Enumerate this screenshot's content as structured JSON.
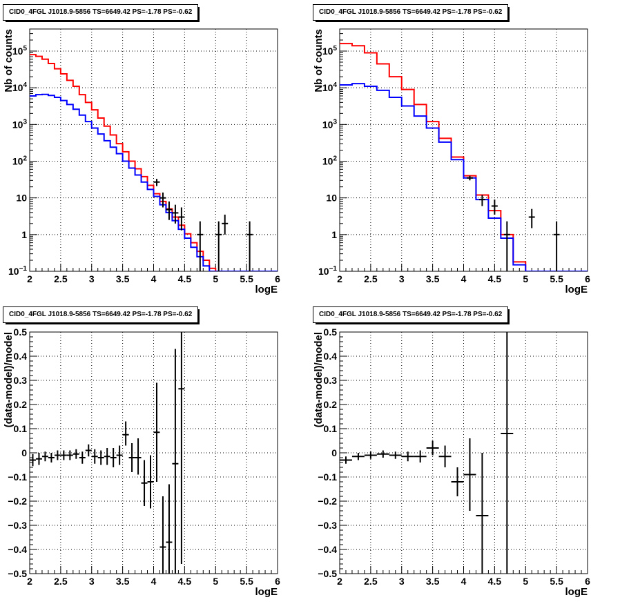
{
  "chart_data": [
    {
      "id": "p1",
      "type": "line",
      "title": "CID0_4FGL J1018.9-5856 TS=6649.42 PS=-1.78 PS=-0.62",
      "xlabel": "logE",
      "ylabel": "Nb of counts",
      "xlim": [
        2,
        6
      ],
      "ylim": [
        0.1,
        400000
      ],
      "yscale": "log",
      "grid": true,
      "xticks": [
        "2",
        "2.5",
        "3",
        "3.5",
        "4",
        "4.5",
        "5",
        "5.5",
        "6"
      ],
      "yticks": [
        {
          "v": 0.1,
          "base": "10",
          "exp": "−1"
        },
        {
          "v": 1,
          "base": "1",
          "exp": ""
        },
        {
          "v": 10,
          "base": "10",
          "exp": ""
        },
        {
          "v": 100,
          "base": "10",
          "exp": "2"
        },
        {
          "v": 1000,
          "base": "10",
          "exp": "3"
        },
        {
          "v": 10000,
          "base": "10",
          "exp": "4"
        },
        {
          "v": 100000,
          "base": "10",
          "exp": "5"
        }
      ],
      "series": [
        {
          "color": "#ff0000",
          "step": true,
          "bin_edges": [
            2.0,
            2.1,
            2.2,
            2.3,
            2.4,
            2.5,
            2.6,
            2.7,
            2.8,
            2.9,
            3.0,
            3.1,
            3.2,
            3.3,
            3.4,
            3.5,
            3.6,
            3.7,
            3.8,
            3.9,
            4.0,
            4.1,
            4.2,
            4.3,
            4.4,
            4.5,
            4.6,
            4.7,
            4.8,
            4.9,
            5.0,
            5.1,
            5.2,
            5.3,
            5.4,
            5.5,
            5.6,
            5.7,
            5.8,
            5.9,
            6.0
          ],
          "values": [
            80000,
            72000,
            60000,
            46000,
            33000,
            24000,
            16000,
            11000,
            6500,
            4000,
            2500,
            1500,
            900,
            520,
            300,
            180,
            100,
            62,
            38,
            22,
            13,
            8,
            5,
            3,
            1.8,
            1.05,
            0.6,
            0.35,
            0.2,
            0.12,
            0.1,
            0.1,
            0.1,
            0.1,
            0.1,
            0.1,
            0.1,
            0.1,
            0.1,
            0.1
          ]
        },
        {
          "color": "#0000ff",
          "step": true,
          "bin_edges": [
            2.0,
            2.1,
            2.2,
            2.3,
            2.4,
            2.5,
            2.6,
            2.7,
            2.8,
            2.9,
            3.0,
            3.1,
            3.2,
            3.3,
            3.4,
            3.5,
            3.6,
            3.7,
            3.8,
            3.9,
            4.0,
            4.1,
            4.2,
            4.3,
            4.4,
            4.5,
            4.6,
            4.7,
            4.8,
            4.9,
            5.0,
            5.1,
            5.2,
            5.3,
            5.4,
            5.5,
            5.6,
            5.7,
            5.8,
            5.9,
            6.0
          ],
          "values": [
            6000,
            6500,
            6600,
            6200,
            5500,
            4500,
            3500,
            2600,
            1800,
            1200,
            800,
            550,
            360,
            240,
            160,
            100,
            65,
            42,
            27,
            17,
            11,
            6.5,
            4,
            2.4,
            1.4,
            0.8,
            0.45,
            0.25,
            0.14,
            0.1,
            0.1,
            0.1,
            0.1,
            0.1,
            0.1,
            0.1,
            0.1,
            0.1,
            0.1,
            0.1
          ]
        },
        {
          "color": "#000000",
          "points": [
            {
              "x": 4.05,
              "y": 27,
              "lo": 21,
              "hi": 33
            },
            {
              "x": 4.15,
              "y": 10,
              "lo": 5.5,
              "hi": 14
            },
            {
              "x": 4.25,
              "y": 4.8,
              "lo": 2.5,
              "hi": 8
            },
            {
              "x": 4.35,
              "y": 3.9,
              "lo": 2,
              "hi": 6.5
            },
            {
              "x": 4.45,
              "y": 3,
              "lo": 1.3,
              "hi": 5.5
            },
            {
              "x": 4.75,
              "y": 1,
              "lo": 0.1,
              "hi": 2.3
            },
            {
              "x": 5.05,
              "y": 1,
              "lo": 0.1,
              "hi": 2.3
            },
            {
              "x": 5.15,
              "y": 2,
              "lo": 1,
              "hi": 3.5
            },
            {
              "x": 5.55,
              "y": 1,
              "lo": 0.1,
              "hi": 2.3
            }
          ]
        }
      ]
    },
    {
      "id": "p2",
      "type": "line",
      "title": "CID0_4FGL J1018.9-5856 TS=6649.42 PS=-1.78 PS=-0.62",
      "xlabel": "logE",
      "ylabel": "Nb of counts",
      "xlim": [
        2,
        6
      ],
      "ylim": [
        0.1,
        400000
      ],
      "yscale": "log",
      "grid": true,
      "xticks": [
        "2",
        "2.5",
        "3",
        "3.5",
        "4",
        "4.5",
        "5",
        "5.5",
        "6"
      ],
      "yticks": [
        {
          "v": 0.1,
          "base": "10",
          "exp": "−1"
        },
        {
          "v": 1,
          "base": "1",
          "exp": ""
        },
        {
          "v": 10,
          "base": "10",
          "exp": ""
        },
        {
          "v": 100,
          "base": "10",
          "exp": "2"
        },
        {
          "v": 1000,
          "base": "10",
          "exp": "3"
        },
        {
          "v": 10000,
          "base": "10",
          "exp": "4"
        },
        {
          "v": 100000,
          "base": "10",
          "exp": "5"
        }
      ],
      "series": [
        {
          "color": "#ff0000",
          "step": true,
          "bin_edges": [
            2.0,
            2.2,
            2.4,
            2.6,
            2.8,
            3.0,
            3.2,
            3.4,
            3.6,
            3.8,
            4.0,
            4.2,
            4.4,
            4.6,
            4.8,
            5.0,
            5.2,
            5.4,
            5.6,
            5.8,
            6.0
          ],
          "values": [
            160000,
            140000,
            90000,
            45000,
            20000,
            9000,
            3500,
            1200,
            420,
            130,
            40,
            12,
            4.5,
            1.0,
            0.18,
            0.1,
            0.1,
            0.1,
            0.1,
            0.1
          ]
        },
        {
          "color": "#0000ff",
          "step": true,
          "bin_edges": [
            2.0,
            2.2,
            2.4,
            2.6,
            2.8,
            3.0,
            3.2,
            3.4,
            3.6,
            3.8,
            4.0,
            4.2,
            4.4,
            4.6,
            4.8,
            5.0,
            5.2,
            5.4,
            5.6,
            5.8,
            6.0
          ],
          "values": [
            12000,
            13000,
            11000,
            8500,
            5500,
            3200,
            1700,
            800,
            330,
            110,
            35,
            9,
            2.8,
            0.8,
            0.15,
            0.1,
            0.1,
            0.1,
            0.1,
            0.1
          ]
        },
        {
          "color": "#000000",
          "points": [
            {
              "x": 4.1,
              "y": 35,
              "lo": 30,
              "hi": 40
            },
            {
              "x": 4.3,
              "y": 9,
              "lo": 6,
              "hi": 12
            },
            {
              "x": 4.5,
              "y": 6,
              "lo": 3.5,
              "hi": 9
            },
            {
              "x": 4.7,
              "y": 1,
              "lo": 0.1,
              "hi": 2.3
            },
            {
              "x": 5.1,
              "y": 3,
              "lo": 1.5,
              "hi": 5
            },
            {
              "x": 5.5,
              "y": 1,
              "lo": 0.1,
              "hi": 2.3
            }
          ]
        }
      ]
    },
    {
      "id": "p3",
      "type": "scatter",
      "title": "CID0_4FGL J1018.9-5856 TS=6649.42 PS=-1.78 PS=-0.62",
      "xlabel": "logE",
      "ylabel": "(data-model)/model",
      "xlim": [
        2,
        6
      ],
      "ylim": [
        -0.5,
        0.5
      ],
      "yscale": "linear",
      "grid": true,
      "xticks": [
        "2",
        "2.5",
        "3",
        "3.5",
        "4",
        "4.5",
        "5",
        "5.5",
        "6"
      ],
      "yticks": [
        {
          "v": -0.5,
          "base": "−0.5",
          "exp": ""
        },
        {
          "v": -0.4,
          "base": "−0.4",
          "exp": ""
        },
        {
          "v": -0.3,
          "base": "−0.3",
          "exp": ""
        },
        {
          "v": -0.2,
          "base": "−0.2",
          "exp": ""
        },
        {
          "v": -0.1,
          "base": "−0.1",
          "exp": ""
        },
        {
          "v": 0,
          "base": "0",
          "exp": ""
        },
        {
          "v": 0.1,
          "base": "0.1",
          "exp": ""
        },
        {
          "v": 0.2,
          "base": "0.2",
          "exp": ""
        },
        {
          "v": 0.3,
          "base": "0.3",
          "exp": ""
        },
        {
          "v": 0.4,
          "base": "0.4",
          "exp": ""
        },
        {
          "v": 0.5,
          "base": "0.5",
          "exp": ""
        }
      ],
      "series": [
        {
          "color": "#000000",
          "xerr": 0.05,
          "points": [
            {
              "x": 2.05,
              "y": -0.03,
              "lo": -0.055,
              "hi": -0.005
            },
            {
              "x": 2.15,
              "y": -0.025,
              "lo": -0.05,
              "hi": 0.0
            },
            {
              "x": 2.25,
              "y": -0.015,
              "lo": -0.035,
              "hi": 0.005
            },
            {
              "x": 2.35,
              "y": -0.02,
              "lo": -0.04,
              "hi": 0.0
            },
            {
              "x": 2.45,
              "y": -0.01,
              "lo": -0.03,
              "hi": 0.01
            },
            {
              "x": 2.55,
              "y": -0.01,
              "lo": -0.03,
              "hi": 0.01
            },
            {
              "x": 2.65,
              "y": -0.01,
              "lo": -0.03,
              "hi": 0.01
            },
            {
              "x": 2.75,
              "y": -0.005,
              "lo": -0.025,
              "hi": 0.015
            },
            {
              "x": 2.85,
              "y": -0.02,
              "lo": -0.045,
              "hi": 0.005
            },
            {
              "x": 2.95,
              "y": 0.01,
              "lo": -0.015,
              "hi": 0.035
            },
            {
              "x": 3.05,
              "y": -0.015,
              "lo": -0.045,
              "hi": 0.015
            },
            {
              "x": 3.15,
              "y": -0.02,
              "lo": -0.05,
              "hi": 0.01
            },
            {
              "x": 3.25,
              "y": -0.015,
              "lo": -0.05,
              "hi": 0.02
            },
            {
              "x": 3.35,
              "y": -0.02,
              "lo": -0.06,
              "hi": 0.02
            },
            {
              "x": 3.45,
              "y": -0.01,
              "lo": -0.05,
              "hi": 0.03
            },
            {
              "x": 3.55,
              "y": 0.075,
              "lo": 0.03,
              "hi": 0.13
            },
            {
              "x": 3.65,
              "y": -0.02,
              "lo": -0.08,
              "hi": 0.04
            },
            {
              "x": 3.75,
              "y": -0.02,
              "lo": -0.09,
              "hi": 0.06
            },
            {
              "x": 3.85,
              "y": -0.125,
              "lo": -0.22,
              "hi": -0.03
            },
            {
              "x": 3.95,
              "y": -0.12,
              "lo": -0.23,
              "hi": -0.01
            },
            {
              "x": 4.05,
              "y": 0.085,
              "lo": -0.12,
              "hi": 0.29
            },
            {
              "x": 4.15,
              "y": -0.39,
              "lo": -0.6,
              "hi": -0.18
            },
            {
              "x": 4.25,
              "y": -0.37,
              "lo": -0.6,
              "hi": -0.13
            },
            {
              "x": 4.35,
              "y": -0.045,
              "lo": -0.55,
              "hi": 0.43
            },
            {
              "x": 4.45,
              "y": 0.265,
              "lo": -0.46,
              "hi": 0.6
            }
          ]
        }
      ]
    },
    {
      "id": "p4",
      "type": "scatter",
      "title": "CID0_4FGL J1018.9-5856 TS=6649.42 PS=-1.78 PS=-0.62",
      "xlabel": "logE",
      "ylabel": "(data-model)/model",
      "xlim": [
        2,
        6
      ],
      "ylim": [
        -0.5,
        0.5
      ],
      "yscale": "linear",
      "grid": true,
      "xticks": [
        "2",
        "2.5",
        "3",
        "3.5",
        "4",
        "4.5",
        "5",
        "5.5",
        "6"
      ],
      "yticks": [
        {
          "v": -0.5,
          "base": "−0.5",
          "exp": ""
        },
        {
          "v": -0.4,
          "base": "−0.4",
          "exp": ""
        },
        {
          "v": -0.3,
          "base": "−0.3",
          "exp": ""
        },
        {
          "v": -0.2,
          "base": "−0.2",
          "exp": ""
        },
        {
          "v": -0.1,
          "base": "−0.1",
          "exp": ""
        },
        {
          "v": 0,
          "base": "0",
          "exp": ""
        },
        {
          "v": 0.1,
          "base": "0.1",
          "exp": ""
        },
        {
          "v": 0.2,
          "base": "0.2",
          "exp": ""
        },
        {
          "v": 0.3,
          "base": "0.3",
          "exp": ""
        },
        {
          "v": 0.4,
          "base": "0.4",
          "exp": ""
        },
        {
          "v": 0.5,
          "base": "0.5",
          "exp": ""
        }
      ],
      "series": [
        {
          "color": "#000000",
          "xerr": 0.1,
          "points": [
            {
              "x": 2.1,
              "y": -0.03,
              "lo": -0.045,
              "hi": -0.015
            },
            {
              "x": 2.3,
              "y": -0.015,
              "lo": -0.03,
              "hi": 0.0
            },
            {
              "x": 2.5,
              "y": -0.01,
              "lo": -0.025,
              "hi": 0.005
            },
            {
              "x": 2.7,
              "y": -0.005,
              "lo": -0.02,
              "hi": 0.01
            },
            {
              "x": 2.9,
              "y": -0.01,
              "lo": -0.025,
              "hi": 0.005
            },
            {
              "x": 3.1,
              "y": -0.015,
              "lo": -0.035,
              "hi": 0.005
            },
            {
              "x": 3.3,
              "y": -0.015,
              "lo": -0.04,
              "hi": 0.01
            },
            {
              "x": 3.5,
              "y": 0.02,
              "lo": -0.01,
              "hi": 0.05
            },
            {
              "x": 3.7,
              "y": -0.015,
              "lo": -0.06,
              "hi": 0.03
            },
            {
              "x": 3.9,
              "y": -0.12,
              "lo": -0.18,
              "hi": -0.06
            },
            {
              "x": 4.1,
              "y": -0.09,
              "lo": -0.24,
              "hi": 0.06
            },
            {
              "x": 4.3,
              "y": -0.26,
              "lo": -0.6,
              "hi": 0.0
            },
            {
              "x": 4.7,
              "y": 0.08,
              "lo": -0.6,
              "hi": 0.6
            }
          ]
        }
      ]
    }
  ]
}
